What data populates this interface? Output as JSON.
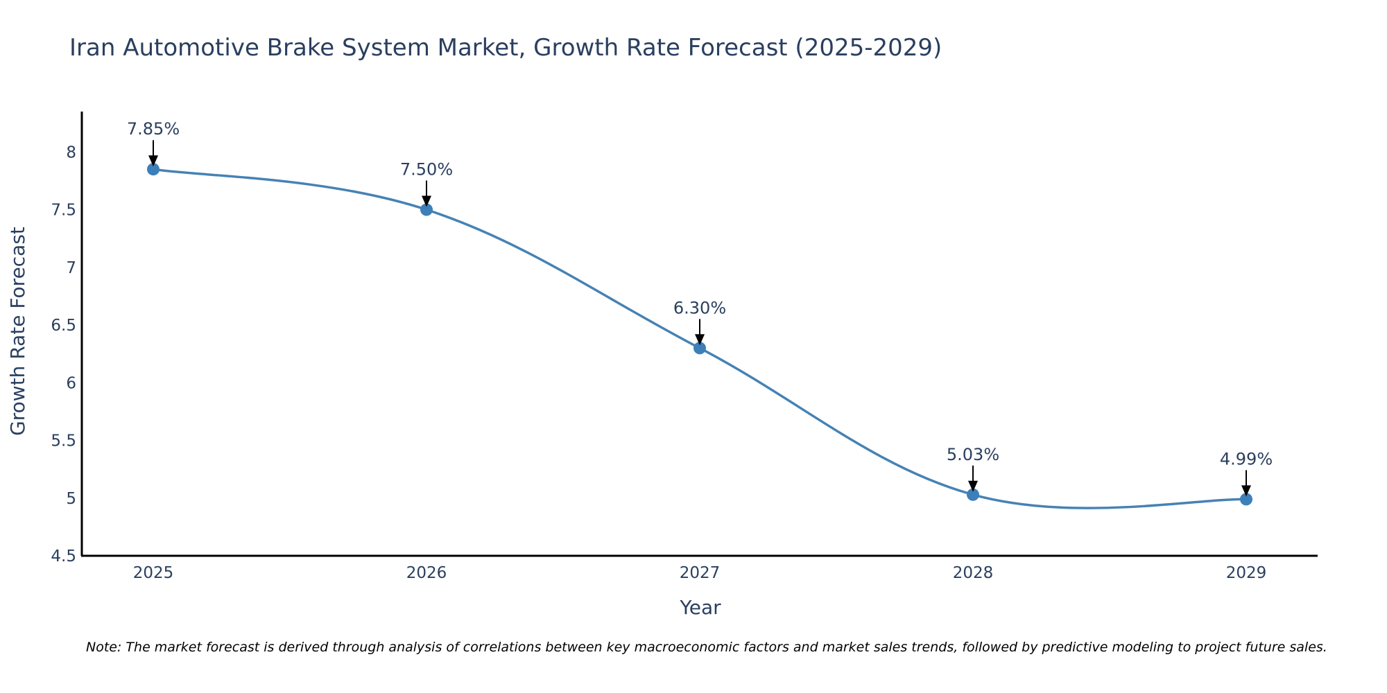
{
  "chart_data": {
    "type": "line",
    "title": "Iran Automotive Brake System Market, Growth Rate Forecast (2025-2029)",
    "xlabel": "Year",
    "ylabel": "Growth Rate Forecast",
    "categories": [
      "2025",
      "2026",
      "2027",
      "2028",
      "2029"
    ],
    "values": [
      7.85,
      7.5,
      6.3,
      5.03,
      4.99
    ],
    "data_labels": [
      "7.85%",
      "7.50%",
      "6.30%",
      "5.03%",
      "4.99%"
    ],
    "ylim": [
      4.5,
      8.35
    ],
    "y_ticks": [
      4.5,
      5,
      5.5,
      6,
      6.5,
      7,
      7.5,
      8
    ],
    "y_tick_labels": [
      "4.5",
      "5",
      "5.5",
      "6",
      "6.5",
      "7",
      "7.5",
      "8"
    ],
    "grid": false,
    "line_color": "#4682b4",
    "marker_color": "#3d7fb8",
    "note": "Note: The market forecast is derived through analysis of correlations between key macroeconomic factors and market sales trends, followed by predictive modeling to project future sales."
  }
}
